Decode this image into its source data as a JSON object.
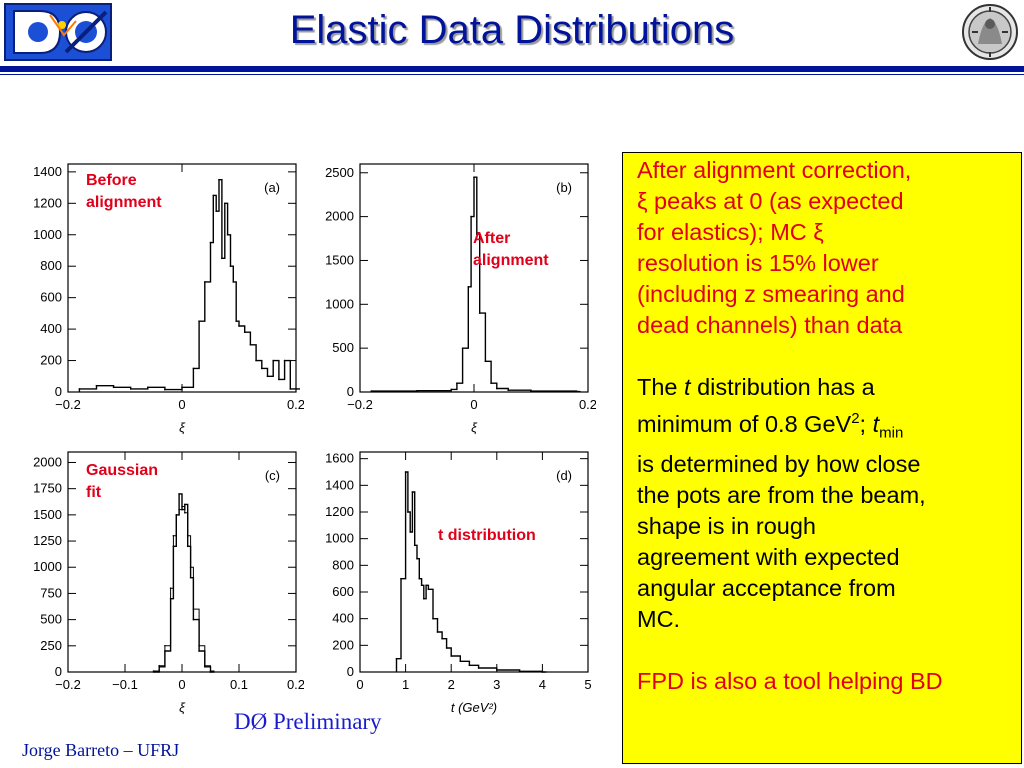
{
  "title": "Elastic Data Distributions",
  "colors": {
    "title": "#00139a",
    "highlight": "#ffff00",
    "callout": "#e0001a",
    "text": "#000000"
  },
  "icons": {
    "left_logo": "do-experiment-logo",
    "right_logo": "ufrj-seal"
  },
  "logo_text": "DØ",
  "callouts": {
    "a": [
      "Before",
      "alignment"
    ],
    "b": [
      "After",
      "alignment"
    ],
    "c": [
      "Gaussian",
      "fit"
    ],
    "d": [
      "t distribution"
    ]
  },
  "chart_data": [
    {
      "type": "line",
      "panel_label": "(a)",
      "xlabel": "ξ",
      "xlim": [
        -0.2,
        0.2
      ],
      "ylim": [
        0,
        1450
      ],
      "xticks": [
        -0.2,
        0,
        0.2
      ],
      "xtick_labels": [
        "−0.2",
        "0",
        "0.2"
      ],
      "yticks": [
        0,
        200,
        400,
        600,
        800,
        1000,
        1200,
        1400
      ],
      "series": [
        {
          "x": [
            -0.18,
            -0.15,
            -0.12,
            -0.09,
            -0.06,
            -0.03,
            0,
            0.02,
            0.03,
            0.04,
            0.05,
            0.055,
            0.06,
            0.065,
            0.07,
            0.075,
            0.08,
            0.085,
            0.09,
            0.095,
            0.1,
            0.11,
            0.12,
            0.13,
            0.14,
            0.15,
            0.16,
            0.17,
            0.18,
            0.19,
            0.2
          ],
          "y": [
            20,
            40,
            30,
            20,
            30,
            15,
            30,
            150,
            450,
            700,
            950,
            1250,
            1150,
            1350,
            850,
            1200,
            1000,
            800,
            700,
            450,
            420,
            380,
            300,
            200,
            150,
            100,
            200,
            80,
            200,
            20,
            20
          ]
        }
      ]
    },
    {
      "type": "line",
      "panel_label": "(b)",
      "xlabel": "ξ",
      "xlim": [
        -0.2,
        0.2
      ],
      "ylim": [
        0,
        2600
      ],
      "xticks": [
        -0.2,
        0,
        0.2
      ],
      "xtick_labels": [
        "−0.2",
        "0",
        "0.2"
      ],
      "yticks": [
        0,
        500,
        1000,
        1500,
        2000,
        2500
      ],
      "series": [
        {
          "x": [
            -0.18,
            -0.1,
            -0.04,
            -0.03,
            -0.02,
            -0.01,
            -0.005,
            0,
            0.005,
            0.01,
            0.02,
            0.03,
            0.04,
            0.06,
            0.1,
            0.18
          ],
          "y": [
            10,
            15,
            30,
            100,
            500,
            1200,
            2000,
            2450,
            1800,
            900,
            350,
            100,
            40,
            20,
            10,
            5
          ]
        }
      ]
    },
    {
      "type": "line",
      "panel_label": "(c)",
      "xlabel": "ξ",
      "xlim": [
        -0.2,
        0.2
      ],
      "ylim": [
        0,
        2100
      ],
      "xticks": [
        -0.2,
        -0.1,
        0,
        0.1,
        0.2
      ],
      "xtick_labels": [
        "−0.2",
        "−0.1",
        "0",
        "0.1",
        "0.2"
      ],
      "yticks": [
        0,
        250,
        500,
        750,
        1000,
        1250,
        1500,
        1750,
        2000
      ],
      "series": [
        {
          "x": [
            -0.05,
            -0.04,
            -0.03,
            -0.02,
            -0.015,
            -0.01,
            -0.005,
            0,
            0.005,
            0.01,
            0.015,
            0.02,
            0.03,
            0.04,
            0.05
          ],
          "y": [
            0,
            50,
            200,
            700,
            1200,
            1500,
            1700,
            1550,
            1600,
            1200,
            900,
            500,
            200,
            50,
            0
          ]
        },
        {
          "x": [
            -0.05,
            -0.04,
            -0.03,
            -0.02,
            -0.015,
            -0.01,
            -0.005,
            0,
            0.005,
            0.01,
            0.015,
            0.02,
            0.03,
            0.04,
            0.05
          ],
          "y": [
            10,
            60,
            250,
            800,
            1300,
            1500,
            1550,
            1580,
            1520,
            1300,
            1000,
            600,
            250,
            60,
            10
          ]
        }
      ]
    },
    {
      "type": "line",
      "panel_label": "(d)",
      "xlabel": "t (GeV²)",
      "xlim": [
        0,
        5
      ],
      "ylim": [
        0,
        1650
      ],
      "xticks": [
        0,
        1,
        2,
        3,
        4,
        5
      ],
      "xtick_labels": [
        "0",
        "1",
        "2",
        "3",
        "4",
        "5"
      ],
      "yticks": [
        0,
        200,
        400,
        600,
        800,
        1000,
        1200,
        1400,
        1600
      ],
      "series": [
        {
          "x": [
            0.8,
            0.9,
            1.0,
            1.05,
            1.1,
            1.15,
            1.2,
            1.25,
            1.3,
            1.35,
            1.4,
            1.45,
            1.5,
            1.6,
            1.7,
            1.8,
            1.9,
            2.0,
            2.2,
            2.4,
            2.6,
            3.0,
            3.5,
            4.0
          ],
          "y": [
            100,
            700,
            1500,
            1200,
            1050,
            1350,
            950,
            850,
            700,
            650,
            550,
            650,
            620,
            400,
            300,
            250,
            180,
            120,
            80,
            50,
            30,
            15,
            5,
            0
          ]
        }
      ]
    }
  ],
  "text_panel": {
    "para1_line1": "After alignment correction,",
    "para1_line2": "ξ peaks at 0 (as expected",
    "para1_line3": "for elastics); MC ξ",
    "para1_line4": "resolution is 15% lower",
    "para1_line5": "(including z smearing and",
    "para1_line6": "dead channels) than data",
    "para2_a": "The ",
    "para2_t": "t",
    "para2_b": " distribution has a",
    "para2_line2a": "minimum of 0.8 GeV",
    "para2_sup": "2",
    "para2_line2b": "; ",
    "para2_t2": "t",
    "para2_sub": "min",
    "para2_rest": [
      "is determined by how close",
      "the pots are from the beam,",
      "shape is in rough",
      "agreement with expected",
      "angular acceptance from",
      "MC."
    ],
    "para3": "FPD is also a tool helping BD"
  },
  "preliminary": "DØ Preliminary",
  "author": "Jorge Barreto – UFRJ"
}
